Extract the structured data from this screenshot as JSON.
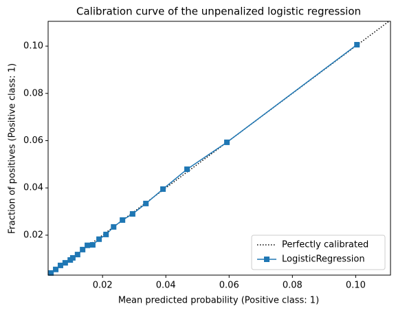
{
  "chart_data": {
    "type": "line",
    "title": "Calibration curve of the unpenalized logistic regression",
    "x_label": "Mean predicted probability (Positive class: 1)",
    "y_label": "Fraction of positives (Positive class: 1)",
    "reference": {
      "name": "Perfectly calibrated",
      "color": "#000000"
    },
    "series": [
      {
        "name": "LogisticRegression",
        "color": "#1f77b4",
        "x": [
          0.0037,
          0.0052,
          0.0067,
          0.0082,
          0.0098,
          0.0106,
          0.0121,
          0.0137,
          0.0152,
          0.0169,
          0.0189,
          0.0211,
          0.0235,
          0.0263,
          0.0295,
          0.0337,
          0.0391,
          0.0467,
          0.0593,
          0.1004
        ],
        "values": [
          0.004,
          0.0055,
          0.0072,
          0.0083,
          0.0095,
          0.0104,
          0.0118,
          0.0139,
          0.0157,
          0.0159,
          0.0183,
          0.0203,
          0.0235,
          0.0264,
          0.029,
          0.0334,
          0.0395,
          0.0479,
          0.0593,
          0.1006
        ]
      }
    ],
    "xlim": [
      0.0028,
      0.111
    ],
    "ylim": [
      0.0031,
      0.1105
    ],
    "xticks": [
      0.02,
      0.04,
      0.06,
      0.08,
      {
        "value": 0.1,
        "label": "0.10"
      }
    ],
    "yticks": [
      0.02,
      0.04,
      0.06,
      0.08,
      {
        "value": 0.1,
        "label": "0.10"
      }
    ],
    "legend": "lower right"
  }
}
